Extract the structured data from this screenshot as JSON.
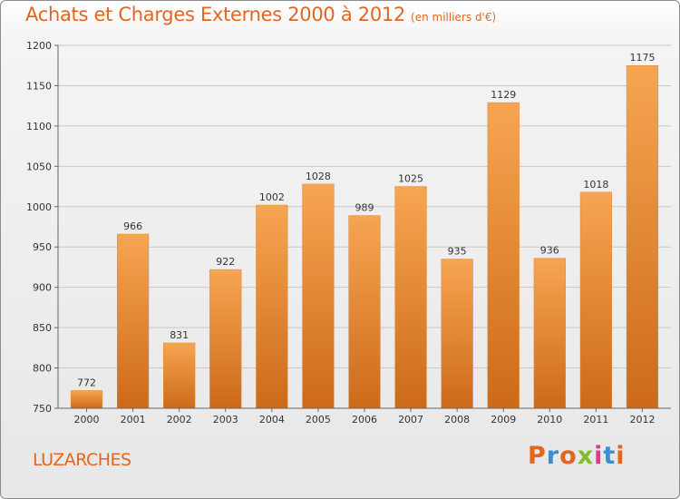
{
  "header": {
    "title": "Achats et Charges Externes 2000 à 2012",
    "subtitle": "(en milliers d'€)"
  },
  "footer": {
    "commune": "LUZARCHES",
    "logo_text": "Proxiti",
    "logo_colors": [
      "#e2661f",
      "#3a8fd0",
      "#e2661f",
      "#7fbf2e",
      "#e03b8a",
      "#3a8fd0",
      "#e2661f"
    ]
  },
  "chart_data": {
    "type": "bar",
    "title": "Achats et Charges Externes 2000 à 2012",
    "subtitle": "(en milliers d'€)",
    "categories": [
      "2000",
      "2001",
      "2002",
      "2003",
      "2004",
      "2005",
      "2006",
      "2007",
      "2008",
      "2009",
      "2010",
      "2011",
      "2012"
    ],
    "values": [
      772,
      966,
      831,
      922,
      1002,
      1028,
      989,
      1025,
      935,
      1129,
      936,
      1018,
      1175
    ],
    "ylim": [
      750,
      1200
    ],
    "yticks": [
      750,
      800,
      850,
      900,
      950,
      1000,
      1050,
      1100,
      1150,
      1200
    ],
    "bar_color_top": "#f7a552",
    "bar_color_bottom": "#cc6a1a",
    "grid": true
  }
}
